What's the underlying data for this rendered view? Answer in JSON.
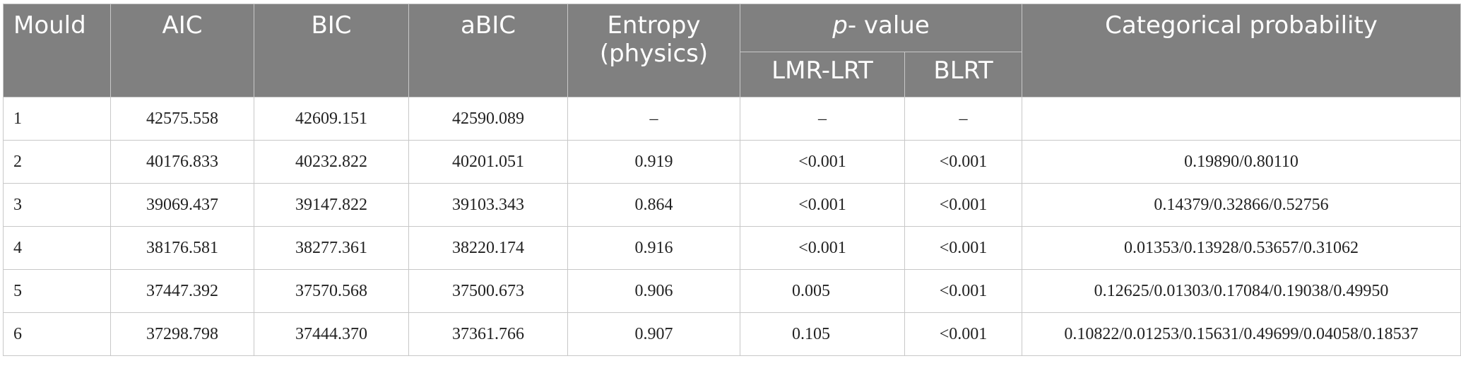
{
  "table": {
    "headers": {
      "mould": "Mould",
      "aic": "AIC",
      "bic": "BIC",
      "abic": "aBIC",
      "entropy_line1": "Entropy",
      "entropy_line2": "(physics)",
      "pvalue_italic": "p",
      "pvalue_rest": "- value",
      "lmr": "LMR-LRT",
      "blrt": "BLRT",
      "catprob": "Categorical probability"
    },
    "rows": [
      {
        "mould": "1",
        "aic": "42575.558",
        "bic": "42609.151",
        "abic": "42590.089",
        "entropy": "–",
        "lmr": "–",
        "blrt": "–",
        "catprob": ""
      },
      {
        "mould": "2",
        "aic": "40176.833",
        "bic": "40232.822",
        "abic": "40201.051",
        "entropy": "0.919",
        "lmr": "<0.001",
        "blrt": "<0.001",
        "catprob": "0.19890/0.80110"
      },
      {
        "mould": "3",
        "aic": "39069.437",
        "bic": "39147.822",
        "abic": "39103.343",
        "entropy": "0.864",
        "lmr": "<0.001",
        "blrt": "<0.001",
        "catprob": "0.14379/0.32866/0.52756"
      },
      {
        "mould": "4",
        "aic": "38176.581",
        "bic": "38277.361",
        "abic": "38220.174",
        "entropy": "0.916",
        "lmr": "<0.001",
        "blrt": "<0.001",
        "catprob": "0.01353/0.13928/0.53657/0.31062"
      },
      {
        "mould": "5",
        "aic": "37447.392",
        "bic": "37570.568",
        "abic": "37500.673",
        "entropy": "0.906",
        "lmr": "0.005",
        "blrt": "<0.001",
        "catprob": "0.12625/0.01303/0.17084/0.19038/0.49950"
      },
      {
        "mould": "6",
        "aic": "37298.798",
        "bic": "37444.370",
        "abic": "37361.766",
        "entropy": "0.907",
        "lmr": "0.105",
        "blrt": "<0.001",
        "catprob": "0.10822/0.01253/0.15631/0.49699/0.04058/0.18537"
      }
    ]
  }
}
